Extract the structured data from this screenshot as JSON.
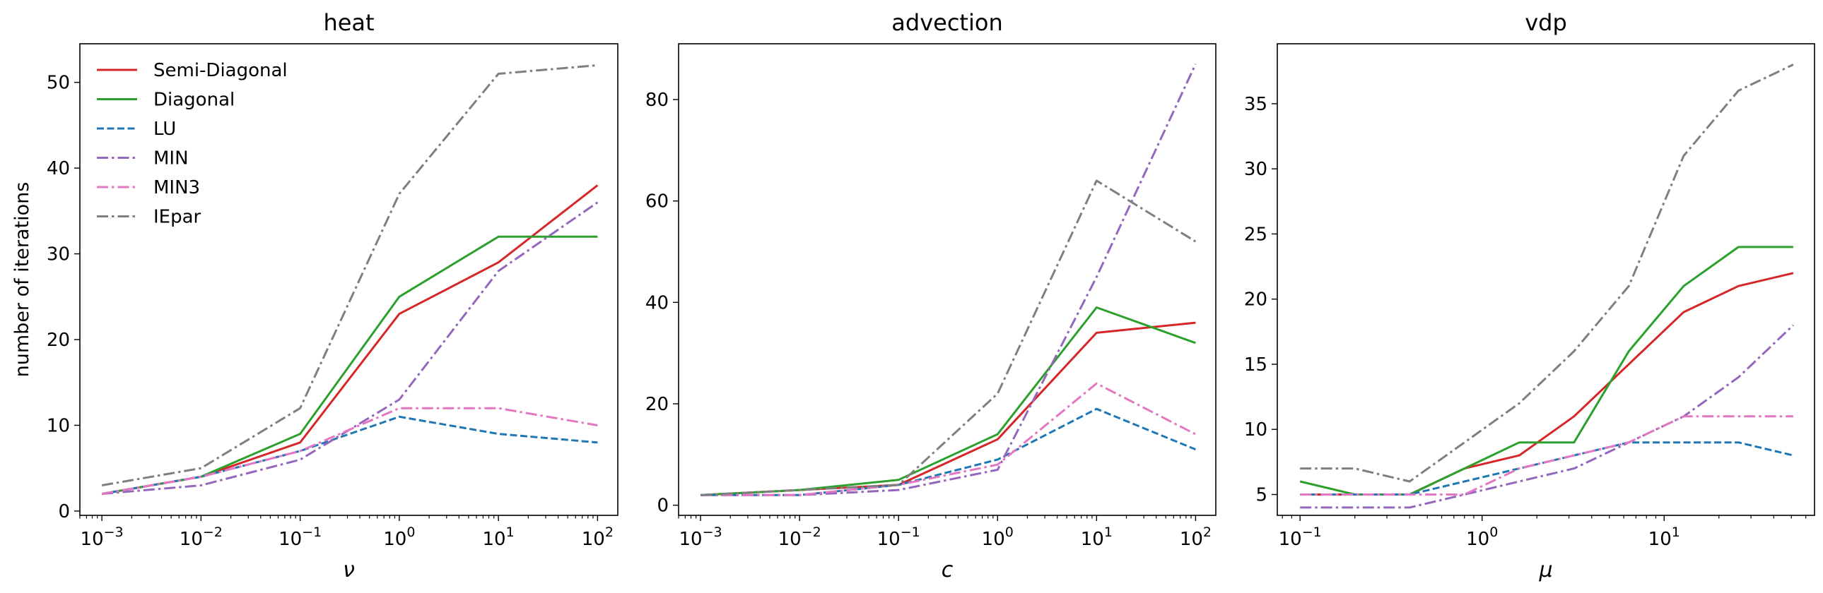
{
  "chart_data": [
    {
      "type": "line",
      "title": "heat",
      "xlabel": "ν",
      "ylabel": "number of iterations",
      "xscale": "log",
      "xlim": [
        0.0006,
        160
      ],
      "ylim": [
        -0.5,
        54.5
      ],
      "x_ticks": [
        {
          "base": "10",
          "exp": "−3",
          "value": 0.001
        },
        {
          "base": "10",
          "exp": "−2",
          "value": 0.01
        },
        {
          "base": "10",
          "exp": "−1",
          "value": 0.1
        },
        {
          "base": "10",
          "exp": "0",
          "value": 1
        },
        {
          "base": "10",
          "exp": "1",
          "value": 10
        },
        {
          "base": "10",
          "exp": "2",
          "value": 100
        }
      ],
      "y_ticks": [
        "0",
        "10",
        "20",
        "30",
        "40",
        "50"
      ],
      "grid": false,
      "legend": "upper-left",
      "x": [
        0.001,
        0.01,
        0.1,
        1,
        10,
        100
      ],
      "series": [
        {
          "name": "Semi-Diagonal",
          "color": "#d62728",
          "dash": "solid",
          "values": [
            2,
            4,
            8,
            23,
            29,
            38
          ]
        },
        {
          "name": "Diagonal",
          "color": "#2ca02c",
          "dash": "solid",
          "values": [
            2,
            4,
            9,
            25,
            32,
            32
          ]
        },
        {
          "name": "LU",
          "color": "#1f77b4",
          "dash": "dashed",
          "values": [
            2,
            4,
            7,
            11,
            9,
            8
          ]
        },
        {
          "name": "MIN",
          "color": "#9467bd",
          "dash": "dashdot",
          "values": [
            2,
            3,
            6,
            13,
            28,
            36
          ]
        },
        {
          "name": "MIN3",
          "color": "#e377c2",
          "dash": "dashdot",
          "values": [
            2,
            4,
            7,
            12,
            12,
            10
          ]
        },
        {
          "name": "IEpar",
          "color": "#7f7f7f",
          "dash": "dashdot",
          "values": [
            3,
            5,
            12,
            37,
            51,
            52
          ]
        }
      ]
    },
    {
      "type": "line",
      "title": "advection",
      "xlabel": "c",
      "ylabel": "",
      "xscale": "log",
      "xlim": [
        0.0006,
        160
      ],
      "ylim": [
        -2,
        91
      ],
      "x_ticks": [
        {
          "base": "10",
          "exp": "−3",
          "value": 0.001
        },
        {
          "base": "10",
          "exp": "−2",
          "value": 0.01
        },
        {
          "base": "10",
          "exp": "−1",
          "value": 0.1
        },
        {
          "base": "10",
          "exp": "0",
          "value": 1
        },
        {
          "base": "10",
          "exp": "1",
          "value": 10
        },
        {
          "base": "10",
          "exp": "2",
          "value": 100
        }
      ],
      "y_ticks": [
        "0",
        "20",
        "40",
        "60",
        "80"
      ],
      "grid": false,
      "x": [
        0.001,
        0.01,
        0.1,
        1,
        10,
        100
      ],
      "series": [
        {
          "name": "Semi-Diagonal",
          "color": "#d62728",
          "dash": "solid",
          "values": [
            2,
            3,
            4,
            13,
            34,
            36
          ]
        },
        {
          "name": "Diagonal",
          "color": "#2ca02c",
          "dash": "solid",
          "values": [
            2,
            3,
            5,
            14,
            39,
            32
          ]
        },
        {
          "name": "LU",
          "color": "#1f77b4",
          "dash": "dashed",
          "values": [
            2,
            2,
            4,
            9,
            19,
            11
          ]
        },
        {
          "name": "MIN",
          "color": "#9467bd",
          "dash": "dashdot",
          "values": [
            2,
            2,
            3,
            7,
            45,
            87
          ]
        },
        {
          "name": "MIN3",
          "color": "#e377c2",
          "dash": "dashdot",
          "values": [
            2,
            2,
            4,
            8,
            24,
            14
          ]
        },
        {
          "name": "IEpar",
          "color": "#7f7f7f",
          "dash": "dashdot",
          "values": [
            2,
            3,
            4,
            22,
            64,
            52
          ]
        }
      ]
    },
    {
      "type": "line",
      "title": "vdp",
      "xlabel": "μ",
      "ylabel": "",
      "xscale": "log",
      "xlim": [
        0.075,
        67
      ],
      "ylim": [
        3.4,
        39.6
      ],
      "x_ticks": [
        {
          "base": "10",
          "exp": "−1",
          "value": 0.1
        },
        {
          "base": "10",
          "exp": "0",
          "value": 1
        },
        {
          "base": "10",
          "exp": "1",
          "value": 10
        }
      ],
      "y_ticks": [
        "5",
        "10",
        "15",
        "20",
        "25",
        "30",
        "35"
      ],
      "grid": false,
      "x": [
        0.1,
        0.2,
        0.4,
        0.8,
        1.6,
        3.2,
        6.4,
        12.8,
        25.6,
        51.2
      ],
      "series": [
        {
          "name": "Semi-Diagonal",
          "color": "#d62728",
          "dash": "solid",
          "values": [
            5,
            5,
            5,
            7,
            8,
            11,
            15,
            19,
            21,
            22
          ]
        },
        {
          "name": "Diagonal",
          "color": "#2ca02c",
          "dash": "solid",
          "values": [
            6,
            5,
            5,
            7,
            9,
            9,
            16,
            21,
            24,
            24
          ]
        },
        {
          "name": "LU",
          "color": "#1f77b4",
          "dash": "dashed",
          "values": [
            5,
            5,
            5,
            6,
            7,
            8,
            9,
            9,
            9,
            8
          ]
        },
        {
          "name": "MIN",
          "color": "#9467bd",
          "dash": "dashdot",
          "values": [
            4,
            4,
            4,
            5,
            6,
            7,
            9,
            11,
            14,
            18
          ]
        },
        {
          "name": "MIN3",
          "color": "#e377c2",
          "dash": "dashdot",
          "values": [
            5,
            5,
            5,
            5,
            7,
            8,
            9,
            11,
            11,
            11
          ]
        },
        {
          "name": "IEpar",
          "color": "#7f7f7f",
          "dash": "dashdot",
          "values": [
            7,
            7,
            6,
            9,
            12,
            16,
            21,
            31,
            36,
            38
          ]
        }
      ]
    }
  ]
}
